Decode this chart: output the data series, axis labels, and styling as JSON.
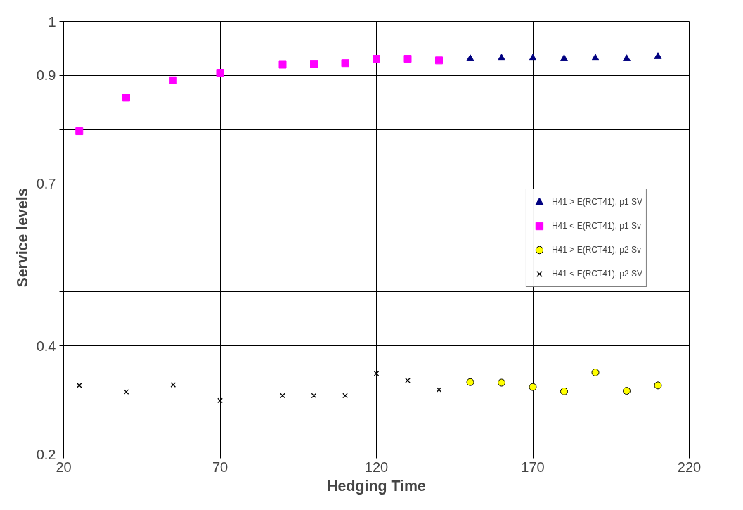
{
  "chart_data": {
    "type": "scatter",
    "xlabel": "Hedging Time",
    "ylabel": "Service levels",
    "xlim": [
      20,
      220
    ],
    "xticks": [
      20,
      70,
      120,
      170,
      220
    ],
    "ylim": [
      0.2,
      1
    ],
    "yticks": [
      0.2,
      {
        "value": 0.3,
        "label": null
      },
      0.4,
      {
        "value": 0.5,
        "label": null
      },
      {
        "value": 0.6,
        "label": null
      },
      0.7,
      {
        "value": 0.8,
        "label": null
      },
      0.9,
      1
    ],
    "grid": true,
    "legend": "right",
    "series": [
      {
        "name": "H41 > E(RCT41), p1 SV",
        "color": "#000080",
        "marker": "triangle",
        "x": [
          150,
          160,
          170,
          180,
          190,
          200,
          210
        ],
        "values": [
          0.931,
          0.932,
          0.932,
          0.931,
          0.932,
          0.931,
          0.935
        ]
      },
      {
        "name": "H41 < E(RCT41), p1 Sv",
        "color": "#ff00ff",
        "marker": "square",
        "x": [
          25,
          40,
          55,
          70,
          90,
          100,
          110,
          120,
          130,
          140
        ],
        "values": [
          0.797,
          0.859,
          0.891,
          0.905,
          0.92,
          0.921,
          0.923,
          0.931,
          0.931,
          0.928
        ]
      },
      {
        "name": "H41 > E(RCT41), p2 Sv",
        "color": "#ffff00",
        "marker": "circle",
        "x": [
          150,
          160,
          170,
          180,
          190,
          200,
          210
        ],
        "values": [
          0.333,
          0.332,
          0.324,
          0.316,
          0.351,
          0.317,
          0.327
        ]
      },
      {
        "name": "H41 < E(RCT41), p2 SV",
        "color": "#000000",
        "marker": "cross",
        "x": [
          25,
          40,
          55,
          70,
          90,
          100,
          110,
          120,
          130,
          140
        ],
        "values": [
          0.327,
          0.315,
          0.328,
          0.299,
          0.308,
          0.308,
          0.308,
          0.349,
          0.336,
          0.319
        ]
      }
    ]
  }
}
